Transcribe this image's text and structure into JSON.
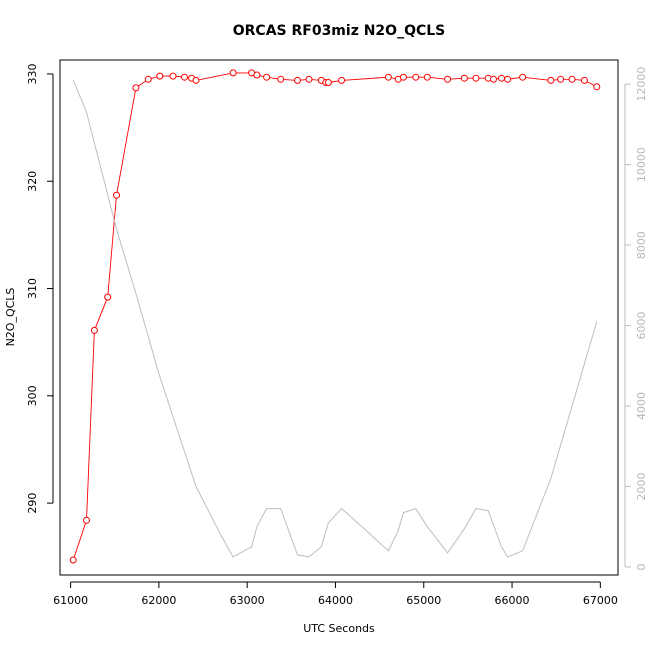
{
  "chart_data": {
    "type": "line",
    "title": "ORCAS RF03miz N2O_QCLS",
    "xlabel": "UTC Seconds",
    "ylabel": "N2O_QCLS",
    "xlim": [
      60880,
      67200
    ],
    "ylim": [
      283.3,
      331.3
    ],
    "y2lim": [
      -200,
      12600
    ],
    "x_ticks": [
      "61000",
      "62000",
      "63000",
      "64000",
      "65000",
      "66000",
      "67000"
    ],
    "y_ticks": [
      "290",
      "300",
      "310",
      "320",
      "330"
    ],
    "y2_ticks": [
      "0",
      "2000",
      "4000",
      "6000",
      "8000",
      "10000",
      "12000"
    ],
    "grid": false,
    "legend": "none",
    "colors": {
      "primary": "#ff0000",
      "secondary": "#bebebe"
    },
    "series": [
      {
        "axis": "left",
        "style": "line+markers",
        "color": "#ff0000",
        "x": [
          61030,
          61180,
          61270,
          61420,
          61520,
          61740,
          61880,
          62010,
          62160,
          62290,
          62370,
          62420,
          62840,
          63050,
          63110,
          63220,
          63380,
          63570,
          63700,
          63840,
          63890,
          63920,
          64070,
          64600,
          64710,
          64770,
          64910,
          65040,
          65270,
          65460,
          65590,
          65730,
          65790,
          65880,
          65950,
          66120,
          66440,
          66550,
          66680,
          66820,
          66960
        ],
        "y": [
          284.7,
          288.4,
          306.1,
          309.2,
          318.7,
          328.7,
          329.5,
          329.8,
          329.8,
          329.7,
          329.6,
          329.4,
          330.1,
          330.1,
          329.9,
          329.7,
          329.5,
          329.4,
          329.5,
          329.4,
          329.2,
          329.2,
          329.4,
          329.7,
          329.5,
          329.7,
          329.7,
          329.7,
          329.5,
          329.6,
          329.6,
          329.6,
          329.5,
          329.6,
          329.5,
          329.7,
          329.4,
          329.5,
          329.5,
          329.4,
          328.8
        ]
      },
      {
        "axis": "right",
        "style": "line",
        "color": "#bebebe",
        "x": [
          61030,
          61180,
          61520,
          61740,
          62000,
          62420,
          62700,
          62840,
          63050,
          63110,
          63220,
          63380,
          63570,
          63700,
          63840,
          63920,
          64070,
          64300,
          64600,
          64710,
          64770,
          64910,
          65040,
          65270,
          65460,
          65590,
          65730,
          65880,
          65950,
          66120,
          66440,
          66960
        ],
        "y": [
          12100,
          11300,
          8400,
          6800,
          4800,
          2000,
          800,
          250,
          500,
          1000,
          1450,
          1450,
          300,
          250,
          500,
          1100,
          1450,
          1000,
          400,
          900,
          1350,
          1450,
          1000,
          350,
          950,
          1450,
          1400,
          500,
          250,
          400,
          2200,
          6100
        ]
      }
    ]
  }
}
